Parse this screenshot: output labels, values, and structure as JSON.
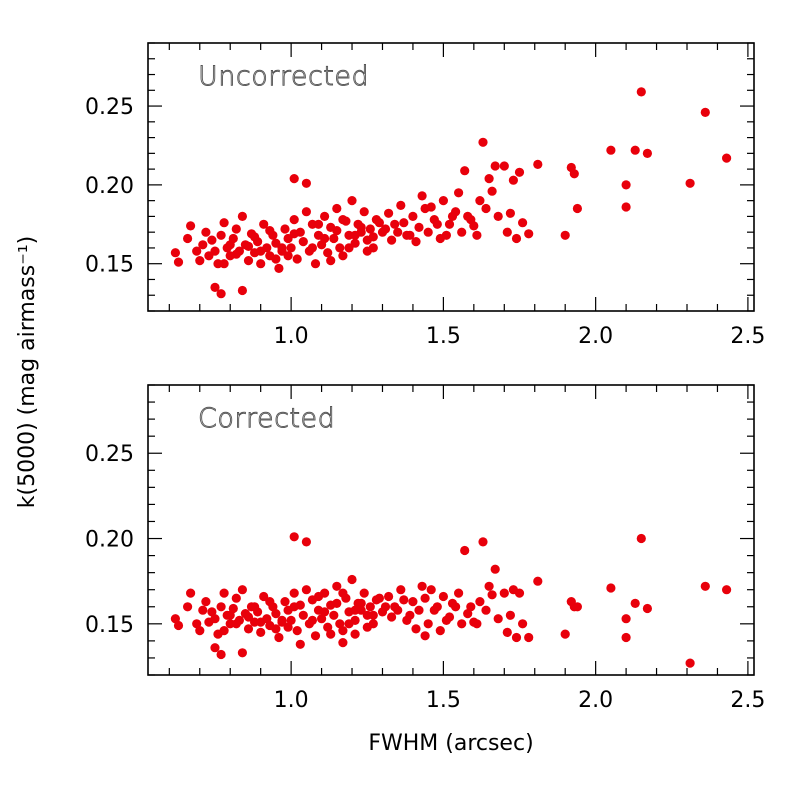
{
  "chart_data": {
    "type": "scatter",
    "xlabel": "FWHM (arcsec)",
    "ylabel": "k(5000) (mag airmass⁻¹)",
    "xlim": [
      0.53,
      2.52
    ],
    "x_ticks": [
      "1.0",
      "1.5",
      "2.0",
      "2.5"
    ],
    "y_ticks": [
      "0.15",
      "0.20",
      "0.25"
    ],
    "marker_color": "#e8000b",
    "panels": [
      {
        "name": "Uncorrected",
        "ylim": [
          0.12,
          0.29
        ],
        "points": [
          [
            0.62,
            0.157
          ],
          [
            0.63,
            0.151
          ],
          [
            0.66,
            0.166
          ],
          [
            0.67,
            0.174
          ],
          [
            0.69,
            0.158
          ],
          [
            0.7,
            0.152
          ],
          [
            0.71,
            0.162
          ],
          [
            0.72,
            0.17
          ],
          [
            0.73,
            0.155
          ],
          [
            0.74,
            0.165
          ],
          [
            0.75,
            0.158
          ],
          [
            0.76,
            0.15
          ],
          [
            0.77,
            0.168
          ],
          [
            0.78,
            0.176
          ],
          [
            0.79,
            0.16
          ],
          [
            0.8,
            0.155
          ],
          [
            0.81,
            0.166
          ],
          [
            0.82,
            0.172
          ],
          [
            0.83,
            0.158
          ],
          [
            0.84,
            0.18
          ],
          [
            0.85,
            0.162
          ],
          [
            0.86,
            0.152
          ],
          [
            0.87,
            0.169
          ],
          [
            0.88,
            0.157
          ],
          [
            0.89,
            0.164
          ],
          [
            0.9,
            0.15
          ],
          [
            0.91,
            0.175
          ],
          [
            0.92,
            0.16
          ],
          [
            0.93,
            0.155
          ],
          [
            0.94,
            0.168
          ],
          [
            0.95,
            0.163
          ],
          [
            0.96,
            0.147
          ],
          [
            0.97,
            0.158
          ],
          [
            0.98,
            0.172
          ],
          [
            0.99,
            0.166
          ],
          [
            1.0,
            0.16
          ],
          [
            1.01,
            0.178
          ],
          [
            1.02,
            0.153
          ],
          [
            1.03,
            0.17
          ],
          [
            1.04,
            0.164
          ],
          [
            1.05,
            0.183
          ],
          [
            1.06,
            0.158
          ],
          [
            1.07,
            0.175
          ],
          [
            1.08,
            0.15
          ],
          [
            1.09,
            0.168
          ],
          [
            1.1,
            0.162
          ],
          [
            1.11,
            0.18
          ],
          [
            1.12,
            0.157
          ],
          [
            1.13,
            0.173
          ],
          [
            1.14,
            0.166
          ],
          [
            1.15,
            0.185
          ],
          [
            1.16,
            0.16
          ],
          [
            1.17,
            0.155
          ],
          [
            1.18,
            0.177
          ],
          [
            1.19,
            0.168
          ],
          [
            1.2,
            0.19
          ],
          [
            1.21,
            0.163
          ],
          [
            1.22,
            0.175
          ],
          [
            1.23,
            0.17
          ],
          [
            1.24,
            0.183
          ],
          [
            1.25,
            0.158
          ],
          [
            1.26,
            0.172
          ],
          [
            1.27,
            0.167
          ],
          [
            1.28,
            0.178
          ],
          [
            1.3,
            0.17
          ],
          [
            1.32,
            0.182
          ],
          [
            1.34,
            0.175
          ],
          [
            1.36,
            0.187
          ],
          [
            1.38,
            0.168
          ],
          [
            1.4,
            0.18
          ],
          [
            1.41,
            0.164
          ],
          [
            1.43,
            0.193
          ],
          [
            1.44,
            0.185
          ],
          [
            1.45,
            0.17
          ],
          [
            1.47,
            0.178
          ],
          [
            1.49,
            0.166
          ],
          [
            1.5,
            0.19
          ],
          [
            1.52,
            0.175
          ],
          [
            1.54,
            0.183
          ],
          [
            1.55,
            0.195
          ],
          [
            1.56,
            0.17
          ],
          [
            1.57,
            0.209
          ],
          [
            1.58,
            0.18
          ],
          [
            1.6,
            0.174
          ],
          [
            1.62,
            0.19
          ],
          [
            1.63,
            0.227
          ],
          [
            1.64,
            0.185
          ],
          [
            1.65,
            0.204
          ],
          [
            1.66,
            0.196
          ],
          [
            1.67,
            0.212
          ],
          [
            1.68,
            0.18
          ],
          [
            1.7,
            0.212
          ],
          [
            1.71,
            0.17
          ],
          [
            1.72,
            0.182
          ],
          [
            1.73,
            0.203
          ],
          [
            1.74,
            0.166
          ],
          [
            1.75,
            0.208
          ],
          [
            1.76,
            0.176
          ],
          [
            1.78,
            0.169
          ],
          [
            1.81,
            0.213
          ],
          [
            1.9,
            0.168
          ],
          [
            1.92,
            0.211
          ],
          [
            1.93,
            0.207
          ],
          [
            1.94,
            0.185
          ],
          [
            2.05,
            0.222
          ],
          [
            2.1,
            0.2
          ],
          [
            2.1,
            0.186
          ],
          [
            2.13,
            0.222
          ],
          [
            2.15,
            0.259
          ],
          [
            2.17,
            0.22
          ],
          [
            2.31,
            0.201
          ],
          [
            2.36,
            0.246
          ],
          [
            2.43,
            0.217
          ],
          [
            0.75,
            0.135
          ],
          [
            0.77,
            0.131
          ],
          [
            0.84,
            0.133
          ],
          [
            0.78,
            0.15
          ],
          [
            0.8,
            0.162
          ],
          [
            0.82,
            0.156
          ],
          [
            0.86,
            0.161
          ],
          [
            0.88,
            0.167
          ],
          [
            0.9,
            0.158
          ],
          [
            0.93,
            0.171
          ],
          [
            0.95,
            0.153
          ],
          [
            0.97,
            0.16
          ],
          [
            0.99,
            0.155
          ],
          [
            1.01,
            0.169
          ],
          [
            1.01,
            0.204
          ],
          [
            1.05,
            0.201
          ],
          [
            1.07,
            0.16
          ],
          [
            1.09,
            0.175
          ],
          [
            1.11,
            0.166
          ],
          [
            1.13,
            0.152
          ],
          [
            1.15,
            0.171
          ],
          [
            1.17,
            0.178
          ],
          [
            1.19,
            0.16
          ],
          [
            1.21,
            0.168
          ],
          [
            1.23,
            0.173
          ],
          [
            1.25,
            0.165
          ],
          [
            1.27,
            0.16
          ],
          [
            1.29,
            0.176
          ],
          [
            1.31,
            0.172
          ],
          [
            1.33,
            0.165
          ],
          [
            1.35,
            0.17
          ],
          [
            1.37,
            0.176
          ],
          [
            1.39,
            0.168
          ],
          [
            1.42,
            0.173
          ],
          [
            1.46,
            0.186
          ],
          [
            1.48,
            0.175
          ],
          [
            1.51,
            0.168
          ],
          [
            1.53,
            0.18
          ],
          [
            1.59,
            0.178
          ],
          [
            1.61,
            0.168
          ]
        ]
      },
      {
        "name": "Corrected",
        "ylim": [
          0.12,
          0.29
        ],
        "points": [
          [
            0.62,
            0.153
          ],
          [
            0.63,
            0.149
          ],
          [
            0.66,
            0.16
          ],
          [
            0.67,
            0.168
          ],
          [
            0.69,
            0.15
          ],
          [
            0.7,
            0.146
          ],
          [
            0.71,
            0.158
          ],
          [
            0.72,
            0.163
          ],
          [
            0.73,
            0.151
          ],
          [
            0.74,
            0.157
          ],
          [
            0.75,
            0.153
          ],
          [
            0.76,
            0.144
          ],
          [
            0.77,
            0.16
          ],
          [
            0.78,
            0.168
          ],
          [
            0.79,
            0.155
          ],
          [
            0.8,
            0.15
          ],
          [
            0.81,
            0.159
          ],
          [
            0.82,
            0.165
          ],
          [
            0.83,
            0.152
          ],
          [
            0.84,
            0.17
          ],
          [
            0.85,
            0.156
          ],
          [
            0.86,
            0.147
          ],
          [
            0.87,
            0.16
          ],
          [
            0.88,
            0.151
          ],
          [
            0.89,
            0.157
          ],
          [
            0.9,
            0.145
          ],
          [
            0.91,
            0.166
          ],
          [
            0.92,
            0.153
          ],
          [
            0.93,
            0.149
          ],
          [
            0.94,
            0.16
          ],
          [
            0.95,
            0.156
          ],
          [
            0.96,
            0.142
          ],
          [
            0.97,
            0.151
          ],
          [
            0.98,
            0.163
          ],
          [
            0.99,
            0.158
          ],
          [
            1.0,
            0.152
          ],
          [
            1.01,
            0.168
          ],
          [
            1.02,
            0.146
          ],
          [
            1.03,
            0.161
          ],
          [
            1.04,
            0.155
          ],
          [
            1.05,
            0.17
          ],
          [
            1.06,
            0.15
          ],
          [
            1.07,
            0.164
          ],
          [
            1.08,
            0.143
          ],
          [
            1.09,
            0.158
          ],
          [
            1.1,
            0.153
          ],
          [
            1.11,
            0.168
          ],
          [
            1.12,
            0.148
          ],
          [
            1.13,
            0.161
          ],
          [
            1.14,
            0.155
          ],
          [
            1.15,
            0.172
          ],
          [
            1.16,
            0.15
          ],
          [
            1.17,
            0.146
          ],
          [
            1.18,
            0.165
          ],
          [
            1.19,
            0.157
          ],
          [
            1.2,
            0.176
          ],
          [
            1.21,
            0.152
          ],
          [
            1.22,
            0.162
          ],
          [
            1.23,
            0.158
          ],
          [
            1.24,
            0.168
          ],
          [
            1.25,
            0.148
          ],
          [
            1.26,
            0.16
          ],
          [
            1.27,
            0.155
          ],
          [
            1.28,
            0.164
          ],
          [
            1.3,
            0.157
          ],
          [
            1.32,
            0.166
          ],
          [
            1.34,
            0.16
          ],
          [
            1.36,
            0.17
          ],
          [
            1.38,
            0.152
          ],
          [
            1.4,
            0.163
          ],
          [
            1.41,
            0.147
          ],
          [
            1.43,
            0.172
          ],
          [
            1.44,
            0.165
          ],
          [
            1.45,
            0.15
          ],
          [
            1.47,
            0.158
          ],
          [
            1.49,
            0.146
          ],
          [
            1.5,
            0.166
          ],
          [
            1.52,
            0.154
          ],
          [
            1.54,
            0.16
          ],
          [
            1.55,
            0.168
          ],
          [
            1.56,
            0.15
          ],
          [
            1.57,
            0.193
          ],
          [
            1.58,
            0.156
          ],
          [
            1.6,
            0.151
          ],
          [
            1.62,
            0.163
          ],
          [
            1.63,
            0.198
          ],
          [
            1.64,
            0.158
          ],
          [
            1.65,
            0.172
          ],
          [
            1.66,
            0.167
          ],
          [
            1.67,
            0.182
          ],
          [
            1.68,
            0.153
          ],
          [
            1.7,
            0.168
          ],
          [
            1.71,
            0.145
          ],
          [
            1.72,
            0.155
          ],
          [
            1.73,
            0.17
          ],
          [
            1.74,
            0.142
          ],
          [
            1.75,
            0.168
          ],
          [
            1.76,
            0.15
          ],
          [
            1.78,
            0.142
          ],
          [
            1.81,
            0.175
          ],
          [
            1.9,
            0.144
          ],
          [
            1.92,
            0.163
          ],
          [
            1.93,
            0.16
          ],
          [
            1.94,
            0.16
          ],
          [
            2.05,
            0.171
          ],
          [
            2.1,
            0.153
          ],
          [
            2.1,
            0.142
          ],
          [
            2.13,
            0.162
          ],
          [
            2.15,
            0.2
          ],
          [
            2.17,
            0.159
          ],
          [
            2.31,
            0.127
          ],
          [
            2.36,
            0.172
          ],
          [
            2.43,
            0.17
          ],
          [
            0.75,
            0.136
          ],
          [
            0.77,
            0.132
          ],
          [
            0.84,
            0.133
          ],
          [
            0.78,
            0.146
          ],
          [
            0.8,
            0.155
          ],
          [
            0.82,
            0.15
          ],
          [
            0.86,
            0.154
          ],
          [
            0.88,
            0.16
          ],
          [
            0.9,
            0.151
          ],
          [
            0.93,
            0.163
          ],
          [
            0.95,
            0.147
          ],
          [
            0.97,
            0.152
          ],
          [
            0.99,
            0.148
          ],
          [
            1.01,
            0.16
          ],
          [
            1.01,
            0.201
          ],
          [
            1.05,
            0.198
          ],
          [
            1.07,
            0.152
          ],
          [
            1.09,
            0.166
          ],
          [
            1.11,
            0.157
          ],
          [
            1.13,
            0.144
          ],
          [
            1.15,
            0.162
          ],
          [
            1.17,
            0.168
          ],
          [
            1.19,
            0.15
          ],
          [
            1.21,
            0.158
          ],
          [
            1.23,
            0.162
          ],
          [
            1.25,
            0.155
          ],
          [
            1.27,
            0.15
          ],
          [
            1.29,
            0.165
          ],
          [
            1.31,
            0.16
          ],
          [
            1.33,
            0.154
          ],
          [
            1.35,
            0.158
          ],
          [
            1.37,
            0.164
          ],
          [
            1.39,
            0.155
          ],
          [
            1.42,
            0.158
          ],
          [
            1.46,
            0.17
          ],
          [
            1.48,
            0.16
          ],
          [
            1.51,
            0.152
          ],
          [
            1.53,
            0.162
          ],
          [
            1.59,
            0.16
          ],
          [
            1.61,
            0.15
          ],
          [
            1.03,
            0.138
          ],
          [
            1.17,
            0.139
          ],
          [
            1.21,
            0.144
          ],
          [
            1.44,
            0.143
          ]
        ]
      }
    ]
  }
}
